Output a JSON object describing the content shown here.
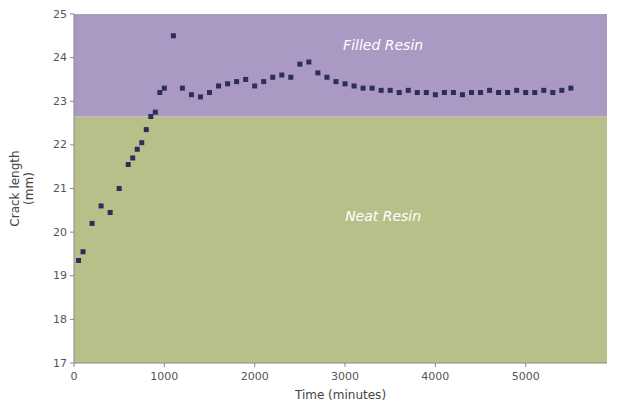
{
  "chart_data": {
    "type": "scatter",
    "xlabel": "Time (minutes)",
    "ylabel": "Crack length\n(mm)",
    "xlim": [
      0,
      5900
    ],
    "ylim": [
      17,
      25
    ],
    "xticks": [
      0,
      1000,
      2000,
      3000,
      4000,
      5000
    ],
    "yticks": [
      17,
      18,
      19,
      20,
      21,
      22,
      23,
      24,
      25
    ],
    "regions": [
      {
        "name": "Neat Resin",
        "from": 17,
        "to": 22.65,
        "color": "#b8c08a"
      },
      {
        "name": "Filled Resin",
        "from": 22.65,
        "to": 25,
        "color": "#aa99c2"
      }
    ],
    "label_color": "#ffffff",
    "grid": false,
    "x": [
      50,
      100,
      200,
      300,
      400,
      500,
      600,
      650,
      700,
      750,
      800,
      850,
      900,
      950,
      1000,
      1100,
      1200,
      1300,
      1400,
      1500,
      1600,
      1700,
      1800,
      1900,
      2000,
      2100,
      2200,
      2300,
      2400,
      2500,
      2600,
      2700,
      2800,
      2900,
      3000,
      3100,
      3200,
      3300,
      3400,
      3500,
      3600,
      3700,
      3800,
      3900,
      4000,
      4100,
      4200,
      4300,
      4400,
      4500,
      4600,
      4700,
      4800,
      4900,
      5000,
      5100,
      5200,
      5300,
      5400,
      5500
    ],
    "values": [
      19.35,
      19.55,
      20.2,
      20.6,
      20.45,
      21.0,
      21.55,
      21.7,
      21.9,
      22.05,
      22.35,
      22.65,
      22.75,
      23.2,
      23.3,
      24.5,
      23.3,
      23.15,
      23.1,
      23.2,
      23.35,
      23.4,
      23.45,
      23.5,
      23.35,
      23.45,
      23.55,
      23.6,
      23.55,
      23.85,
      23.9,
      23.65,
      23.55,
      23.45,
      23.4,
      23.35,
      23.3,
      23.3,
      23.25,
      23.25,
      23.2,
      23.25,
      23.2,
      23.2,
      23.15,
      23.2,
      23.2,
      23.15,
      23.2,
      23.2,
      23.25,
      23.2,
      23.2,
      23.25,
      23.2,
      23.2,
      23.25,
      23.2,
      23.25,
      23.3
    ],
    "color": "#2d2d5a",
    "marker": "square"
  }
}
